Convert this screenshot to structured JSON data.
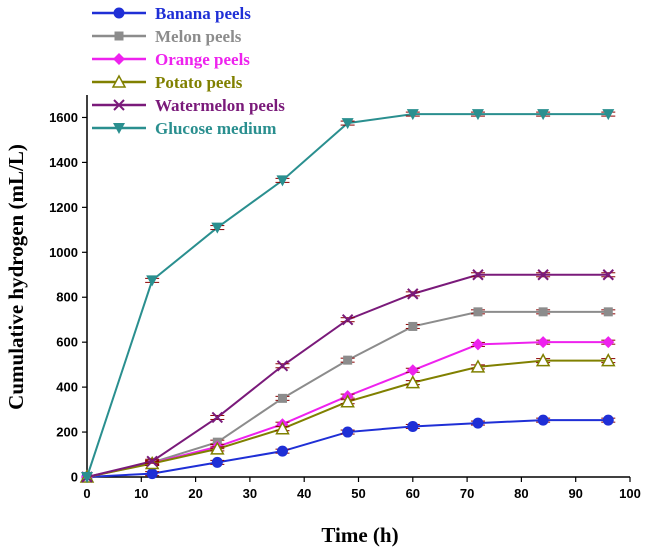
{
  "chart_data": {
    "type": "line",
    "title": "",
    "xlabel": "Time (h)",
    "ylabel": "Cumulative hydrogen (mL/L)",
    "xlim": [
      0,
      100
    ],
    "ylim": [
      0,
      1700
    ],
    "xticks": [
      0,
      10,
      20,
      30,
      40,
      50,
      60,
      70,
      80,
      90,
      100
    ],
    "yticks": [
      0,
      200,
      400,
      600,
      800,
      1000,
      1200,
      1400,
      1600
    ],
    "grid": false,
    "legend_position": "top-left",
    "x": [
      0,
      12,
      24,
      36,
      48,
      60,
      72,
      84,
      96
    ],
    "series": [
      {
        "name": "Banana peels",
        "color": "#1f2fd6",
        "marker": "circle",
        "values": [
          0,
          15,
          65,
          115,
          200,
          225,
          240,
          253,
          253
        ]
      },
      {
        "name": "Melon peels",
        "color": "#8c8c8c",
        "marker": "square",
        "values": [
          0,
          65,
          155,
          350,
          520,
          670,
          735,
          735,
          735
        ]
      },
      {
        "name": "Orange peels",
        "color": "#ee22ee",
        "marker": "diamond",
        "values": [
          0,
          62,
          135,
          235,
          360,
          475,
          590,
          600,
          600
        ]
      },
      {
        "name": "Potato peels",
        "color": "#808000",
        "marker": "triangle-up-open",
        "values": [
          0,
          60,
          125,
          215,
          335,
          420,
          490,
          518,
          518
        ]
      },
      {
        "name": "Watermelon peels",
        "color": "#7a1a7a",
        "marker": "x",
        "values": [
          0,
          70,
          265,
          495,
          700,
          815,
          900,
          900,
          900
        ]
      },
      {
        "name": "Glucose medium",
        "color": "#2a8f8f",
        "marker": "triangle-down",
        "values": [
          0,
          875,
          1110,
          1320,
          1575,
          1615,
          1615,
          1615,
          1615
        ]
      }
    ]
  }
}
